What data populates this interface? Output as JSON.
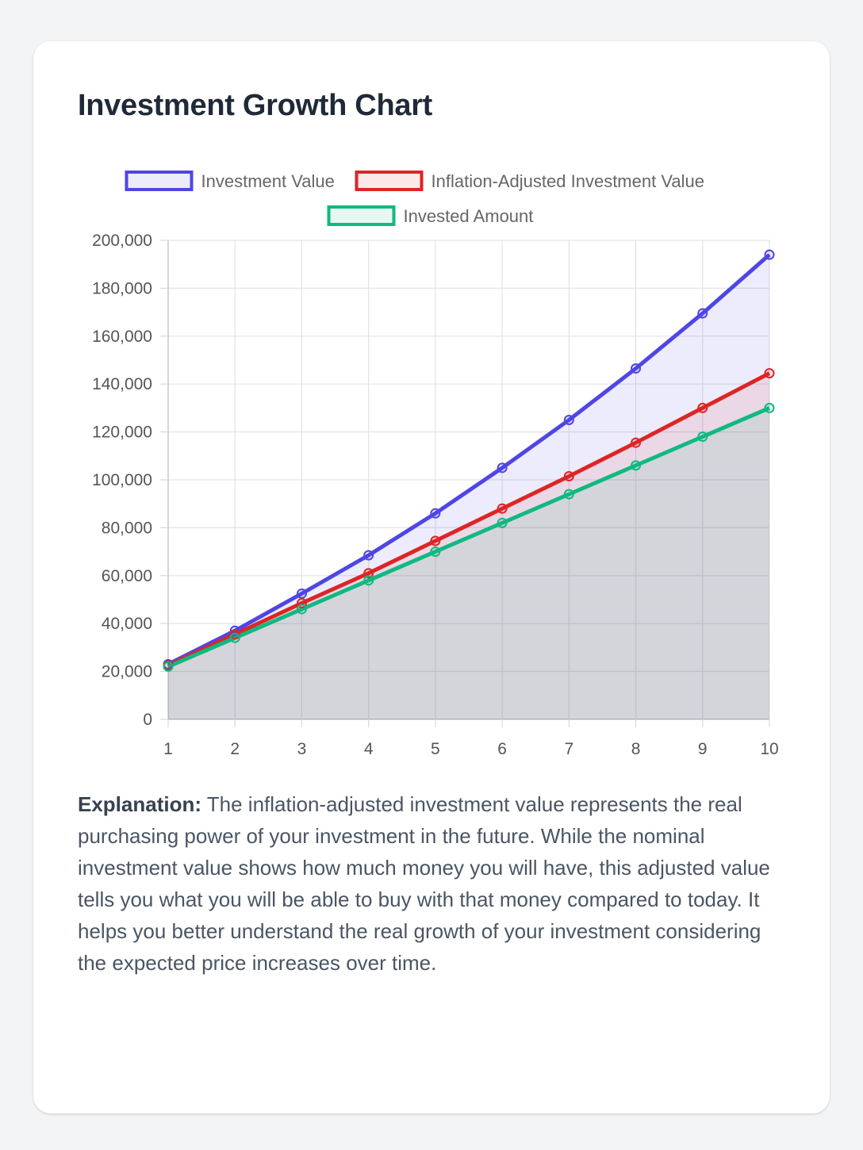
{
  "page": {
    "title": "Investment Growth Chart",
    "explanation_label": "Explanation:",
    "explanation_text": "The inflation-adjusted investment value represents the real purchasing power of your investment in the future. While the nominal investment value shows how much money you will have, this adjusted value tells you what you will be able to buy with that money compared to today. It helps you better understand the real growth of your investment considering the expected price increases over time."
  },
  "chart_data": {
    "type": "area",
    "title": "",
    "xlabel": "",
    "ylabel": "",
    "categories": [
      "1",
      "2",
      "3",
      "4",
      "5",
      "6",
      "7",
      "8",
      "9",
      "10"
    ],
    "ylim": [
      0,
      200000
    ],
    "yticks": [
      0,
      20000,
      40000,
      60000,
      80000,
      100000,
      120000,
      140000,
      160000,
      180000,
      200000
    ],
    "grid": true,
    "legend_position": "top",
    "series": [
      {
        "name": "Investment Value",
        "color": "#4f46e5",
        "fill": "rgba(79,70,229,0.1)",
        "values": [
          23000,
          37000,
          52500,
          68500,
          86000,
          105000,
          125000,
          146500,
          169500,
          194000
        ]
      },
      {
        "name": "Inflation-Adjusted Investment Value",
        "color": "#dc2626",
        "fill": "rgba(220,38,38,0.1)",
        "values": [
          22500,
          35500,
          48500,
          61000,
          74500,
          88000,
          101500,
          115500,
          130000,
          144500
        ]
      },
      {
        "name": "Invested Amount",
        "color": "#10b981",
        "fill": "rgba(16,185,129,0.1)",
        "values": [
          22000,
          34000,
          46000,
          58000,
          70000,
          82000,
          94000,
          106000,
          118000,
          130000
        ]
      }
    ]
  }
}
